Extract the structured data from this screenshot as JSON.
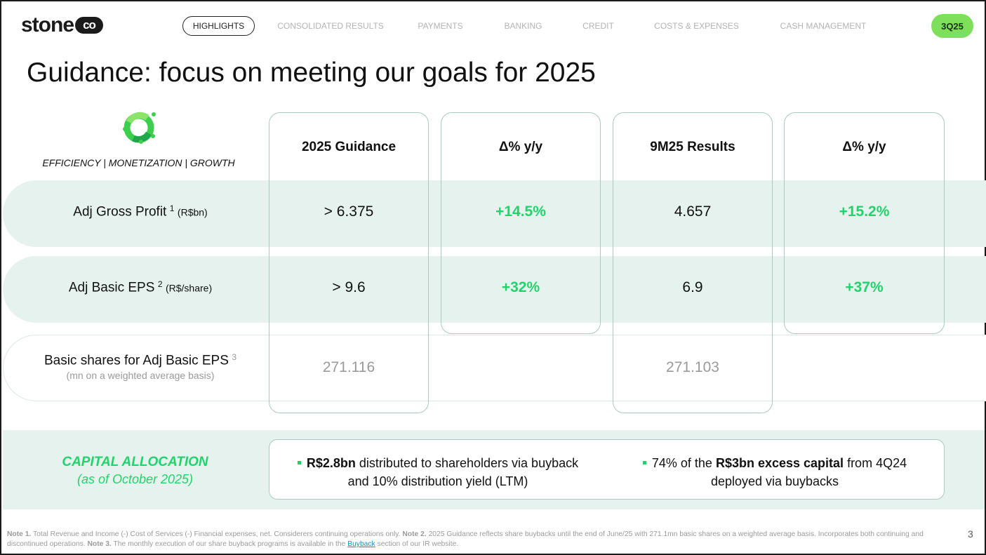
{
  "header": {
    "logo_word": "stone",
    "logo_co": "co",
    "nav": [
      {
        "label": "HIGHLIGHTS",
        "active": true
      },
      {
        "label": "CONSOLIDATED RESULTS",
        "active": false
      },
      {
        "label": "PAYMENTS",
        "active": false
      },
      {
        "label": "BANKING",
        "active": false
      },
      {
        "label": "CREDIT",
        "active": false
      },
      {
        "label": "COSTS & EXPENSES",
        "active": false
      },
      {
        "label": "CASH MANAGEMENT",
        "active": false
      }
    ],
    "period_badge": "3Q25"
  },
  "title": "Guidance: focus on meeting our goals for 2025",
  "table": {
    "tagline": "EFFICIENCY | MONETIZATION | GROWTH",
    "columns": [
      "2025 Guidance",
      "Δ% y/y",
      "9M25 Results",
      "Δ% y/y"
    ],
    "rows": [
      {
        "label": "Adj Gross Profit",
        "sup": "1",
        "unit": "(R$bn)",
        "guidance": "> 6.375",
        "guidance_delta": "+14.5%",
        "results": "4.657",
        "results_delta": "+15.2%"
      },
      {
        "label": "Adj Basic EPS",
        "sup": "2",
        "unit": "(R$/share)",
        "guidance": "> 9.6",
        "guidance_delta": "+32%",
        "results": "6.9",
        "results_delta": "+37%"
      },
      {
        "label": "Basic shares for Adj Basic EPS",
        "sup": "3",
        "unit": "(mn on a weighted average basis)",
        "guidance": "271.116",
        "results": "271.103"
      }
    ]
  },
  "capital_allocation": {
    "title": "CAPITAL ALLOCATION",
    "subtitle": "(as of October 2025)",
    "bullet1_bold": "R$2.8bn",
    "bullet1_rest": " distributed to shareholders via buyback",
    "bullet1_line2": "and 10% distribution yield (LTM)",
    "bullet2_pre": "74% of the ",
    "bullet2_bold": "R$3bn excess capital",
    "bullet2_post": " from 4Q24",
    "bullet2_line2": "deployed via buybacks"
  },
  "footnote": {
    "n1_label": "Note 1.",
    "n1_text": " Total Revenue and Income (-) Cost of Services (-) Financial expenses, net. Considerers continuing operations only. ",
    "n2_label": "Note 2.",
    "n2_text": " 2025 Guidance reflects share buybacks until the end of June/25 with 271.1mn basic shares on a weighted average basis. Incorporates both continuing and discontinued operations. ",
    "n3_label": "Note 3.",
    "n3_text": " The monthly execution of our share buyback programs is available in the ",
    "link": "Buyback",
    "n3_end": " section of our IR website."
  },
  "page_number": "3",
  "colors": {
    "accent_green": "#22d36c",
    "badge_green": "#7ddf5a",
    "row_shade": "#e6f2ee",
    "box_border": "#a9cbbe"
  },
  "icons": {
    "brand_mark": "green-ring-icon"
  }
}
